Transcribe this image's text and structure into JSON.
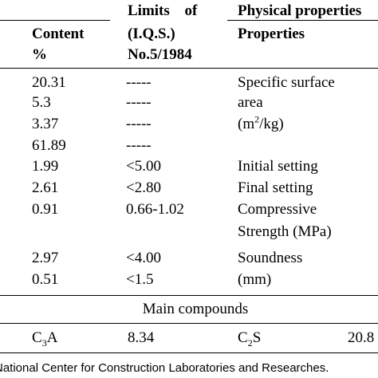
{
  "header": {
    "content": [
      "Content",
      "%"
    ],
    "limits": [
      "Limits of",
      "(I.Q.S.)",
      "No.5/1984"
    ],
    "physical": "Physical properties",
    "properties": "Properties"
  },
  "rows": [
    [
      "20.31",
      "-----"
    ],
    [
      "5.3",
      "-----"
    ],
    [
      "3.37",
      "-----"
    ],
    [
      "61.89",
      "-----"
    ],
    [
      "1.99",
      "<5.00"
    ],
    [
      "2.61",
      "<2.80"
    ],
    [
      "0.91",
      "0.66-1.02"
    ],
    [
      "2.97",
      "<4.00"
    ],
    [
      "0.51",
      "<1.5"
    ]
  ],
  "properties": [
    "Specific surface",
    "area",
    {
      "pre": "(m",
      "sup": "2",
      "post": "/kg)"
    },
    "Initial setting",
    "Final setting",
    "Compressive",
    "Strength (MPa)",
    "Soundness",
    "(mm)"
  ],
  "main_compounds": {
    "title": "Main compounds",
    "cells": [
      {
        "pre": "C",
        "sub": "3",
        "post": "A"
      },
      "8.34",
      {
        "pre": "C",
        "sub": "2",
        "post": "S"
      },
      "20.8"
    ]
  },
  "footer": "National Center for Construction Laboratories and Researches."
}
